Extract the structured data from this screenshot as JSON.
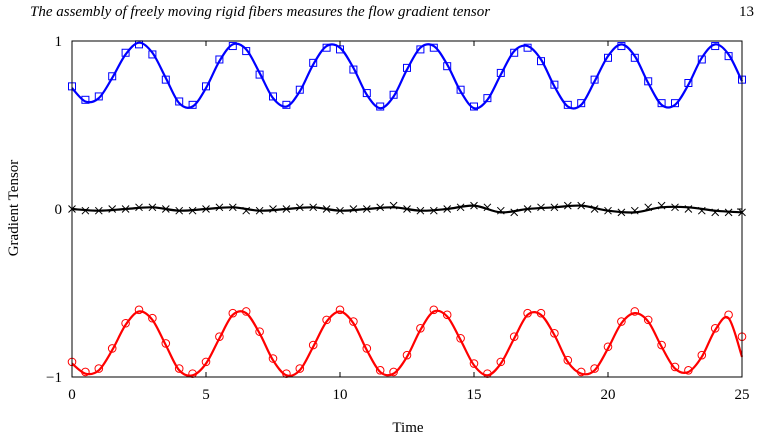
{
  "header": {
    "running_title": "The assembly of freely moving rigid fibers measures the flow gradient tensor",
    "page_number": "13"
  },
  "chart_data": {
    "type": "line",
    "title": "",
    "xlabel": "Time",
    "ylabel": "Gradient Tensor",
    "xlim": [
      0,
      25
    ],
    "ylim": [
      -1,
      1
    ],
    "x_ticks": [
      {
        "value": 0,
        "label": "0"
      },
      {
        "value": 5,
        "label": "5"
      },
      {
        "value": 10,
        "label": "10"
      },
      {
        "value": 15,
        "label": "15"
      },
      {
        "value": 20,
        "label": "20"
      },
      {
        "value": 25,
        "label": "25"
      }
    ],
    "y_ticks": [
      {
        "value": -1,
        "label": "−1"
      },
      {
        "value": 0,
        "label": "0"
      },
      {
        "value": 1,
        "label": "1"
      }
    ],
    "grid": false,
    "legend": "none",
    "series": [
      {
        "color": "#0000ff",
        "marker": "square",
        "line": {
          "x": [
            0.0,
            0.5,
            1.0,
            1.5,
            2.0,
            2.5,
            3.0,
            3.5,
            4.0,
            4.5,
            5.0,
            5.5,
            6.0,
            6.5,
            7.0,
            7.5,
            8.0,
            8.5,
            9.0,
            9.5,
            10.0,
            10.5,
            11.0,
            11.5,
            12.0,
            12.5,
            13.0,
            13.5,
            14.0,
            14.5,
            15.0,
            15.5,
            16.0,
            16.5,
            17.0,
            17.5,
            18.0,
            18.5,
            19.0,
            19.5,
            20.0,
            20.5,
            21.0,
            21.5,
            22.0,
            22.5,
            23.0,
            23.5,
            24.0,
            24.5,
            25.0
          ],
          "y": [
            0.72,
            0.64,
            0.66,
            0.78,
            0.92,
            0.99,
            0.93,
            0.78,
            0.63,
            0.61,
            0.72,
            0.88,
            0.98,
            0.95,
            0.81,
            0.66,
            0.61,
            0.7,
            0.86,
            0.97,
            0.96,
            0.84,
            0.68,
            0.6,
            0.67,
            0.83,
            0.96,
            0.97,
            0.86,
            0.7,
            0.6,
            0.65,
            0.8,
            0.94,
            0.97,
            0.89,
            0.73,
            0.61,
            0.62,
            0.76,
            0.91,
            0.98,
            0.91,
            0.75,
            0.62,
            0.62,
            0.74,
            0.9,
            0.98,
            0.92,
            0.76
          ]
        },
        "points": {
          "x": [
            0.0,
            0.5,
            1.0,
            1.5,
            2.0,
            2.5,
            3.0,
            3.5,
            4.0,
            4.5,
            5.0,
            5.5,
            6.0,
            6.5,
            7.0,
            7.5,
            8.0,
            8.5,
            9.0,
            9.5,
            10.0,
            10.5,
            11.0,
            11.5,
            12.0,
            12.5,
            13.0,
            13.5,
            14.0,
            14.5,
            15.0,
            15.5,
            16.0,
            16.5,
            17.0,
            17.5,
            18.0,
            18.5,
            19.0,
            19.5,
            20.0,
            20.5,
            21.0,
            21.5,
            22.0,
            22.5,
            23.0,
            23.5,
            24.0,
            24.5,
            25.0
          ],
          "y": [
            0.73,
            0.65,
            0.67,
            0.79,
            0.93,
            0.98,
            0.92,
            0.77,
            0.64,
            0.62,
            0.73,
            0.89,
            0.97,
            0.94,
            0.8,
            0.67,
            0.62,
            0.71,
            0.87,
            0.96,
            0.95,
            0.83,
            0.69,
            0.61,
            0.68,
            0.84,
            0.95,
            0.96,
            0.85,
            0.71,
            0.61,
            0.66,
            0.81,
            0.93,
            0.96,
            0.88,
            0.74,
            0.62,
            0.63,
            0.77,
            0.9,
            0.97,
            0.9,
            0.76,
            0.63,
            0.63,
            0.75,
            0.89,
            0.97,
            0.91,
            0.77
          ]
        }
      },
      {
        "color": "#000000",
        "marker": "cross",
        "line": {
          "x": [
            0.0,
            1.0,
            2.0,
            3.0,
            4.0,
            5.0,
            6.0,
            7.0,
            8.0,
            9.0,
            10.0,
            11.0,
            12.0,
            13.0,
            14.0,
            15.0,
            16.0,
            17.0,
            18.0,
            19.0,
            20.0,
            21.0,
            22.0,
            23.0,
            24.0,
            25.0
          ],
          "y": [
            0.0,
            -0.01,
            0.0,
            0.01,
            -0.01,
            0.0,
            0.01,
            -0.01,
            0.0,
            0.01,
            -0.01,
            0.0,
            0.01,
            -0.01,
            0.0,
            0.02,
            -0.02,
            0.0,
            0.01,
            0.02,
            -0.01,
            -0.02,
            0.01,
            0.01,
            -0.01,
            -0.02
          ]
        },
        "points": {
          "x": [
            0.0,
            0.5,
            1.0,
            1.5,
            2.0,
            2.5,
            3.0,
            3.5,
            4.0,
            4.5,
            5.0,
            5.5,
            6.0,
            6.5,
            7.0,
            7.5,
            8.0,
            8.5,
            9.0,
            9.5,
            10.0,
            10.5,
            11.0,
            11.5,
            12.0,
            12.5,
            13.0,
            13.5,
            14.0,
            14.5,
            15.0,
            15.5,
            16.0,
            16.5,
            17.0,
            17.5,
            18.0,
            18.5,
            19.0,
            19.5,
            20.0,
            20.5,
            21.0,
            21.5,
            22.0,
            22.5,
            23.0,
            23.5,
            24.0,
            24.5,
            25.0
          ],
          "y": [
            0.0,
            -0.01,
            -0.01,
            0.0,
            0.0,
            0.01,
            0.01,
            0.0,
            -0.01,
            -0.01,
            0.0,
            0.01,
            0.01,
            -0.01,
            -0.01,
            0.0,
            0.0,
            0.01,
            0.01,
            0.0,
            -0.01,
            0.0,
            0.0,
            0.01,
            0.02,
            0.0,
            -0.01,
            -0.01,
            0.0,
            0.01,
            0.02,
            0.01,
            -0.01,
            -0.02,
            0.0,
            0.01,
            0.01,
            0.02,
            0.02,
            0.0,
            -0.01,
            -0.02,
            -0.01,
            0.01,
            0.02,
            0.01,
            0.0,
            -0.01,
            -0.02,
            -0.02,
            -0.02
          ]
        }
      },
      {
        "color": "#ff0000",
        "marker": "circle",
        "line": {
          "x": [
            0.0,
            0.5,
            1.0,
            1.5,
            2.0,
            2.5,
            3.0,
            3.5,
            4.0,
            4.5,
            5.0,
            5.5,
            6.0,
            6.5,
            7.0,
            7.5,
            8.0,
            8.5,
            9.0,
            9.5,
            10.0,
            10.5,
            11.0,
            11.5,
            12.0,
            12.5,
            13.0,
            13.5,
            14.0,
            14.5,
            15.0,
            15.5,
            16.0,
            16.5,
            17.0,
            17.5,
            18.0,
            18.5,
            19.0,
            19.5,
            20.0,
            20.5,
            21.0,
            21.5,
            22.0,
            22.5,
            23.0,
            23.5,
            24.0,
            24.5,
            25.0
          ],
          "y": [
            -0.92,
            -0.98,
            -0.96,
            -0.84,
            -0.69,
            -0.61,
            -0.66,
            -0.81,
            -0.96,
            -0.99,
            -0.92,
            -0.77,
            -0.63,
            -0.62,
            -0.74,
            -0.9,
            -0.99,
            -0.96,
            -0.82,
            -0.67,
            -0.61,
            -0.68,
            -0.84,
            -0.97,
            -0.98,
            -0.88,
            -0.72,
            -0.61,
            -0.64,
            -0.78,
            -0.93,
            -0.99,
            -0.92,
            -0.77,
            -0.63,
            -0.63,
            -0.75,
            -0.91,
            -0.98,
            -0.96,
            -0.83,
            -0.68,
            -0.62,
            -0.67,
            -0.82,
            -0.95,
            -0.97,
            -0.88,
            -0.72,
            -0.65,
            -0.88
          ]
        },
        "points": {
          "x": [
            0.0,
            0.5,
            1.0,
            1.5,
            2.0,
            2.5,
            3.0,
            3.5,
            4.0,
            4.5,
            5.0,
            5.5,
            6.0,
            6.5,
            7.0,
            7.5,
            8.0,
            8.5,
            9.0,
            9.5,
            10.0,
            10.5,
            11.0,
            11.5,
            12.0,
            12.5,
            13.0,
            13.5,
            14.0,
            14.5,
            15.0,
            15.5,
            16.0,
            16.5,
            17.0,
            17.5,
            18.0,
            18.5,
            19.0,
            19.5,
            20.0,
            20.5,
            21.0,
            21.5,
            22.0,
            22.5,
            23.0,
            23.5,
            24.0,
            24.5,
            25.0
          ],
          "y": [
            -0.91,
            -0.97,
            -0.95,
            -0.83,
            -0.68,
            -0.6,
            -0.65,
            -0.8,
            -0.95,
            -0.98,
            -0.91,
            -0.76,
            -0.62,
            -0.61,
            -0.73,
            -0.89,
            -0.98,
            -0.95,
            -0.81,
            -0.66,
            -0.6,
            -0.67,
            -0.83,
            -0.96,
            -0.97,
            -0.87,
            -0.71,
            -0.6,
            -0.63,
            -0.77,
            -0.92,
            -0.98,
            -0.91,
            -0.76,
            -0.62,
            -0.62,
            -0.74,
            -0.9,
            -0.97,
            -0.95,
            -0.82,
            -0.67,
            -0.61,
            -0.66,
            -0.81,
            -0.94,
            -0.96,
            -0.87,
            -0.71,
            -0.63,
            -0.76
          ]
        }
      }
    ]
  }
}
